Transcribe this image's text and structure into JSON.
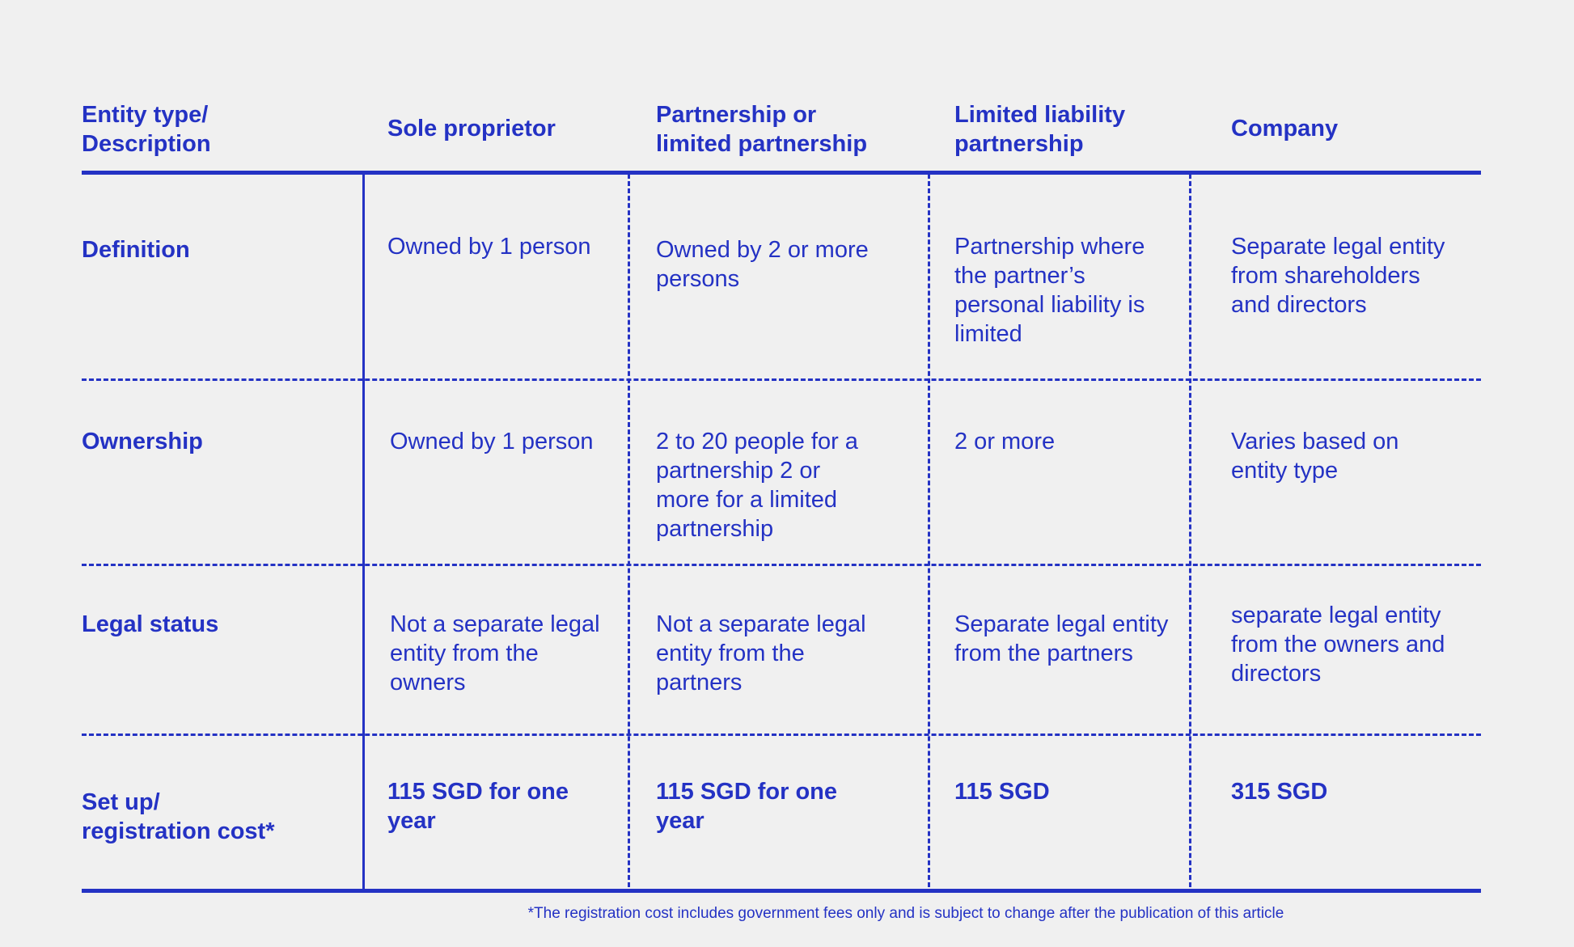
{
  "header": {
    "col0": "Entity type/\nDescription",
    "col1": "Sole proprietor",
    "col2": "Partnership or\nlimited partnership",
    "col3": "Limited liability\npartnership",
    "col4": "Company"
  },
  "rows": {
    "definition": {
      "label": "Definition",
      "c1": "Owned by 1 person",
      "c2": "Owned by 2 or more\npersons",
      "c3": "Partnership where\nthe partner’s\npersonal liability is\nlimited",
      "c4": "Separate legal entity\nfrom shareholders\nand directors"
    },
    "ownership": {
      "label": "Ownership",
      "c1": "Owned by 1 person",
      "c2": "2 to 20 people for a\npartnership 2 or\nmore for a limited\npartnership",
      "c3": "2 or more",
      "c4": "Varies based on\nentity type"
    },
    "legal_status": {
      "label": "Legal status",
      "c1": "Not a separate legal\nentity from the\nowners",
      "c2": "Not a separate legal\nentity from the\npartners",
      "c3": "Separate legal entity\nfrom the partners",
      "c4": "separate legal entity\nfrom the owners and\ndirectors"
    },
    "cost": {
      "label": "Set up/\nregistration cost*",
      "c1": "115 SGD for one\nyear",
      "c2": "115 SGD for one\nyear",
      "c3": "115 SGD",
      "c4": "315 SGD"
    }
  },
  "footnote": "*The registration cost includes government fees only and is subject to change after the publication of this article",
  "colors": {
    "accent": "#2432c4",
    "background": "#f0f0f0"
  }
}
